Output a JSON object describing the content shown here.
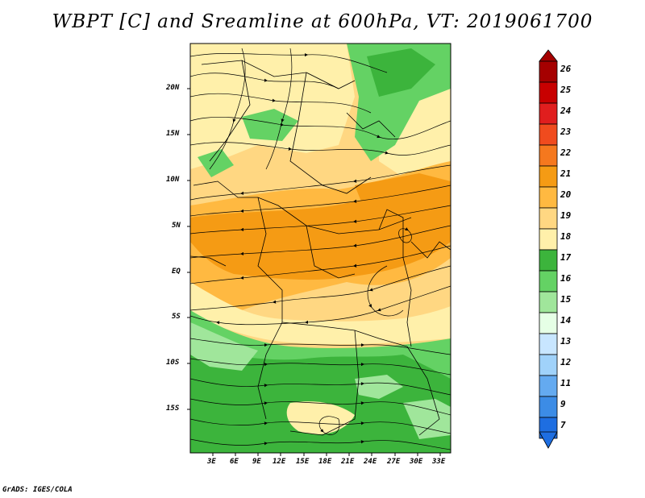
{
  "title": "WBPT [C] and Sreamline at 600hPa, VT: 2019061700",
  "credit": "GrADS: IGES/COLA",
  "map": {
    "lat_ticks": [
      "20N",
      "15N",
      "10N",
      "5N",
      "EQ",
      "5S",
      "10S",
      "15S"
    ],
    "lon_ticks": [
      "3E",
      "6E",
      "9E",
      "12E",
      "15E",
      "18E",
      "21E",
      "24E",
      "27E",
      "30E",
      "33E"
    ]
  },
  "colorbar": {
    "labels": [
      "26",
      "25",
      "24",
      "23",
      "22",
      "21",
      "20",
      "19",
      "18",
      "17",
      "16",
      "15",
      "14",
      "13",
      "12",
      "11",
      "9",
      "7"
    ],
    "colors": [
      "#a50000",
      "#c80000",
      "#e01e1e",
      "#f04b1e",
      "#f5781e",
      "#f59b14",
      "#ffb941",
      "#ffd782",
      "#fff0aa",
      "#3cb43c",
      "#64d264",
      "#a0e69b",
      "#e6ffe6",
      "#c8e6ff",
      "#a0d2fa",
      "#64aaf0",
      "#3c8ce6",
      "#1e6ee1"
    ]
  }
}
